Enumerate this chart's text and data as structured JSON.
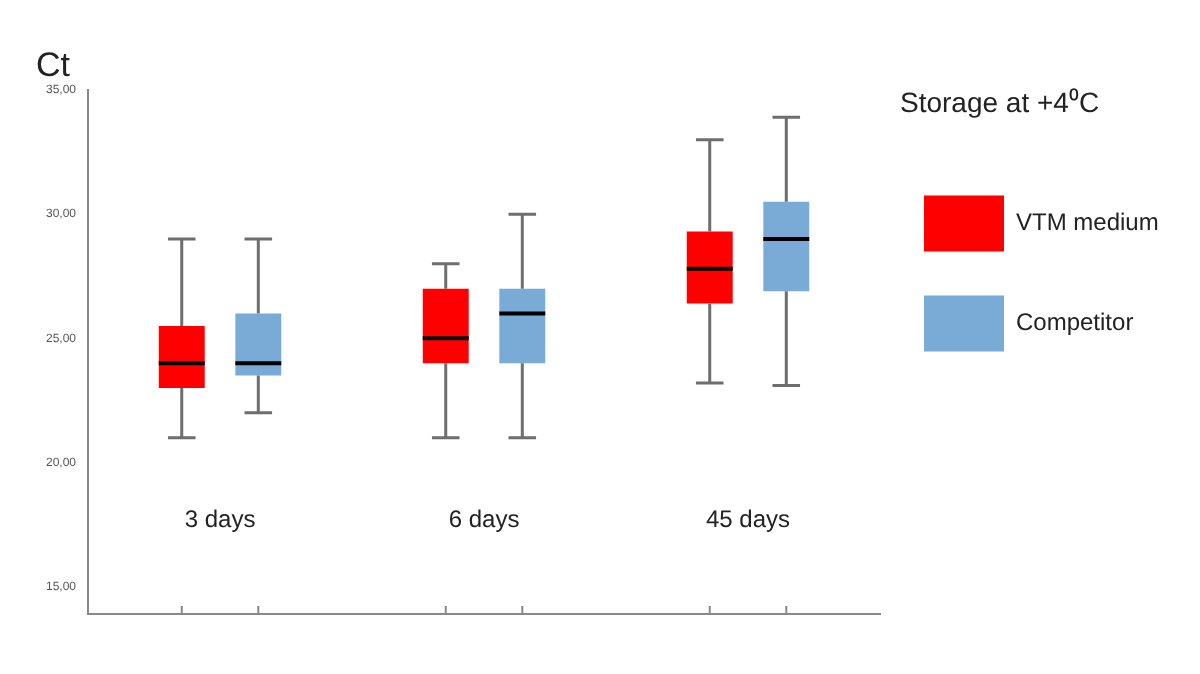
{
  "chart_data": {
    "type": "box",
    "ylabel": "Ct",
    "legend_title": "Storage at +4⁰C",
    "categories": [
      "3 days",
      "6 days",
      "45 days"
    ],
    "series": [
      {
        "name": "VTM medium",
        "color": "#ff0000",
        "boxes": [
          {
            "low": 21,
            "q1": 23,
            "median": 24,
            "q3": 25.5,
            "high": 29
          },
          {
            "low": 21,
            "q1": 24,
            "median": 25,
            "q3": 27,
            "high": 28
          },
          {
            "low": 23.2,
            "q1": 26.4,
            "median": 27.8,
            "q3": 29.3,
            "high": 33
          }
        ]
      },
      {
        "name": "Competitor",
        "color": "#7aaad6",
        "boxes": [
          {
            "low": 22,
            "q1": 23.5,
            "median": 24,
            "q3": 26,
            "high": 29
          },
          {
            "low": 21,
            "q1": 24,
            "median": 26,
            "q3": 27,
            "high": 30
          },
          {
            "low": 23.1,
            "q1": 26.9,
            "median": 29,
            "q3": 30.5,
            "high": 33.9
          }
        ]
      }
    ],
    "ylim": [
      13.9,
      35
    ],
    "yticks": [
      {
        "value": 15,
        "label": "15,00"
      },
      {
        "value": 20,
        "label": "20,00"
      },
      {
        "value": 25,
        "label": "25,00"
      },
      {
        "value": 30,
        "label": "30,00"
      },
      {
        "value": 35,
        "label": "35,00"
      }
    ],
    "grid": false,
    "legend": "right"
  }
}
